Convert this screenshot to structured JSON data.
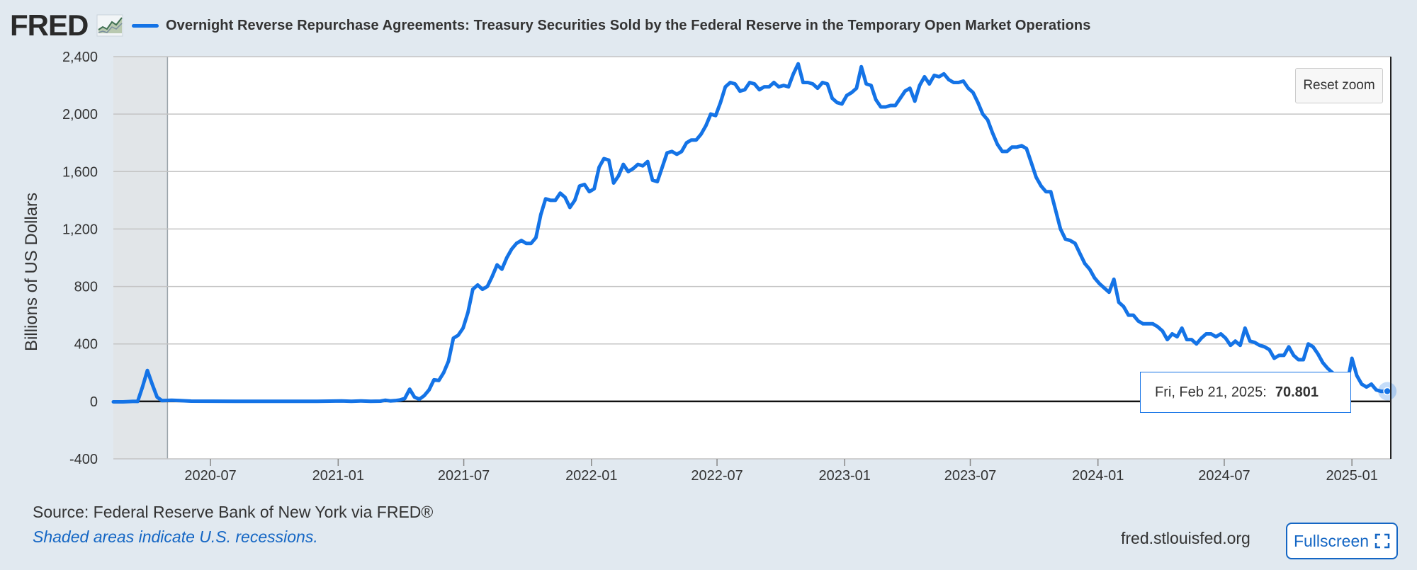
{
  "header": {
    "logo_text": "FRED",
    "logo_icon": "line-chart-icon",
    "legend_label": "Overnight Reverse Repurchase Agreements: Treasury Securities Sold by the Federal Reserve in the Temporary Open Market Operations"
  },
  "controls": {
    "reset_zoom_label": "Reset zoom",
    "fullscreen_label": "Fullscreen",
    "fullscreen_icon": "expand-icon"
  },
  "tooltip": {
    "date": "Fri, Feb 21, 2025:",
    "value": "70.801"
  },
  "footer": {
    "source": "Source: Federal Reserve Bank of New York via FRED®",
    "note": "Shaded areas indicate U.S. recessions.",
    "site": "fred.stlouisfed.org"
  },
  "colors": {
    "series": "#1473e6",
    "background": "#e1e9f0",
    "plot_background": "#ffffff",
    "recession_shade": "#e1e5e8",
    "link": "#1466c4"
  },
  "chart_data": {
    "type": "line",
    "title": "",
    "xlabel": "",
    "ylabel": "Billions of US Dollars",
    "ylim": [
      -400,
      2400
    ],
    "xlim": [
      "2020-02-12",
      "2025-02-26"
    ],
    "yticks": [
      -400,
      0,
      400,
      800,
      1200,
      1600,
      2000,
      2400
    ],
    "ytick_labels": [
      "-400",
      "0",
      "400",
      "800",
      "1,200",
      "1,600",
      "2,000",
      "2,400"
    ],
    "xticks": [
      "2020-07-01",
      "2021-01-01",
      "2021-07-01",
      "2022-01-01",
      "2022-07-01",
      "2023-01-01",
      "2023-07-01",
      "2024-01-01",
      "2024-07-01",
      "2025-01-01"
    ],
    "xtick_labels": [
      "2020-07",
      "2021-01",
      "2021-07",
      "2022-01",
      "2022-07",
      "2023-01",
      "2023-07",
      "2024-01",
      "2024-07",
      "2025-01"
    ],
    "grid": true,
    "legend_position": "top",
    "recessions": [
      [
        "2020-02-12",
        "2020-04-30"
      ]
    ],
    "series": [
      {
        "name": "Overnight Reverse Repurchase Agreements: Treasury Securities Sold by the Federal Reserve in the Temporary Open Market Operations",
        "color": "#1473e6",
        "points": [
          [
            "2020-02-12",
            -3
          ],
          [
            "2020-02-26",
            -3
          ],
          [
            "2020-03-11",
            0
          ],
          [
            "2020-03-18",
            0
          ],
          [
            "2020-03-25",
            100
          ],
          [
            "2020-04-01",
            215
          ],
          [
            "2020-04-08",
            120
          ],
          [
            "2020-04-15",
            30
          ],
          [
            "2020-04-22",
            5
          ],
          [
            "2020-05-06",
            8
          ],
          [
            "2020-06-03",
            2
          ],
          [
            "2020-08-05",
            1
          ],
          [
            "2020-10-07",
            1
          ],
          [
            "2020-12-02",
            1
          ],
          [
            "2021-01-06",
            3
          ],
          [
            "2021-01-20",
            1
          ],
          [
            "2021-02-03",
            3
          ],
          [
            "2021-02-17",
            1
          ],
          [
            "2021-03-03",
            2
          ],
          [
            "2021-03-10",
            8
          ],
          [
            "2021-03-17",
            3
          ],
          [
            "2021-03-24",
            5
          ],
          [
            "2021-03-31",
            10
          ],
          [
            "2021-04-07",
            20
          ],
          [
            "2021-04-14",
            85
          ],
          [
            "2021-04-21",
            30
          ],
          [
            "2021-04-28",
            15
          ],
          [
            "2021-05-05",
            40
          ],
          [
            "2021-05-12",
            80
          ],
          [
            "2021-05-19",
            150
          ],
          [
            "2021-05-26",
            145
          ],
          [
            "2021-06-02",
            200
          ],
          [
            "2021-06-09",
            280
          ],
          [
            "2021-06-16",
            440
          ],
          [
            "2021-06-23",
            460
          ],
          [
            "2021-06-30",
            510
          ],
          [
            "2021-07-07",
            620
          ],
          [
            "2021-07-14",
            780
          ],
          [
            "2021-07-21",
            810
          ],
          [
            "2021-07-28",
            780
          ],
          [
            "2021-08-04",
            800
          ],
          [
            "2021-08-11",
            870
          ],
          [
            "2021-08-18",
            950
          ],
          [
            "2021-08-25",
            920
          ],
          [
            "2021-09-01",
            1000
          ],
          [
            "2021-09-08",
            1060
          ],
          [
            "2021-09-15",
            1100
          ],
          [
            "2021-09-22",
            1120
          ],
          [
            "2021-09-29",
            1100
          ],
          [
            "2021-10-06",
            1100
          ],
          [
            "2021-10-13",
            1140
          ],
          [
            "2021-10-20",
            1300
          ],
          [
            "2021-10-27",
            1410
          ],
          [
            "2021-11-03",
            1400
          ],
          [
            "2021-11-10",
            1400
          ],
          [
            "2021-11-17",
            1450
          ],
          [
            "2021-11-24",
            1420
          ],
          [
            "2021-12-01",
            1350
          ],
          [
            "2021-12-08",
            1400
          ],
          [
            "2021-12-15",
            1500
          ],
          [
            "2021-12-22",
            1510
          ],
          [
            "2021-12-29",
            1460
          ],
          [
            "2022-01-05",
            1480
          ],
          [
            "2022-01-12",
            1630
          ],
          [
            "2022-01-19",
            1690
          ],
          [
            "2022-01-26",
            1680
          ],
          [
            "2022-02-02",
            1520
          ],
          [
            "2022-02-09",
            1570
          ],
          [
            "2022-02-16",
            1650
          ],
          [
            "2022-02-23",
            1600
          ],
          [
            "2022-03-02",
            1620
          ],
          [
            "2022-03-09",
            1650
          ],
          [
            "2022-03-16",
            1640
          ],
          [
            "2022-03-23",
            1670
          ],
          [
            "2022-03-30",
            1540
          ],
          [
            "2022-04-06",
            1530
          ],
          [
            "2022-04-13",
            1630
          ],
          [
            "2022-04-20",
            1730
          ],
          [
            "2022-04-27",
            1740
          ],
          [
            "2022-05-04",
            1720
          ],
          [
            "2022-05-11",
            1740
          ],
          [
            "2022-05-18",
            1800
          ],
          [
            "2022-05-25",
            1820
          ],
          [
            "2022-06-01",
            1820
          ],
          [
            "2022-06-08",
            1860
          ],
          [
            "2022-06-15",
            1920
          ],
          [
            "2022-06-22",
            2000
          ],
          [
            "2022-06-29",
            1990
          ],
          [
            "2022-07-06",
            2080
          ],
          [
            "2022-07-13",
            2190
          ],
          [
            "2022-07-20",
            2220
          ],
          [
            "2022-07-27",
            2210
          ],
          [
            "2022-08-03",
            2160
          ],
          [
            "2022-08-10",
            2170
          ],
          [
            "2022-08-17",
            2220
          ],
          [
            "2022-08-24",
            2210
          ],
          [
            "2022-08-31",
            2170
          ],
          [
            "2022-09-07",
            2190
          ],
          [
            "2022-09-14",
            2190
          ],
          [
            "2022-09-21",
            2220
          ],
          [
            "2022-09-28",
            2190
          ],
          [
            "2022-10-05",
            2200
          ],
          [
            "2022-10-12",
            2190
          ],
          [
            "2022-10-19",
            2280
          ],
          [
            "2022-10-26",
            2350
          ],
          [
            "2022-11-02",
            2220
          ],
          [
            "2022-11-09",
            2220
          ],
          [
            "2022-11-16",
            2210
          ],
          [
            "2022-11-23",
            2180
          ],
          [
            "2022-11-30",
            2220
          ],
          [
            "2022-12-07",
            2210
          ],
          [
            "2022-12-14",
            2110
          ],
          [
            "2022-12-21",
            2080
          ],
          [
            "2022-12-28",
            2070
          ],
          [
            "2023-01-04",
            2130
          ],
          [
            "2023-01-11",
            2150
          ],
          [
            "2023-01-18",
            2180
          ],
          [
            "2023-01-25",
            2330
          ],
          [
            "2023-02-01",
            2210
          ],
          [
            "2023-02-08",
            2200
          ],
          [
            "2023-02-15",
            2100
          ],
          [
            "2023-02-22",
            2050
          ],
          [
            "2023-03-01",
            2050
          ],
          [
            "2023-03-08",
            2060
          ],
          [
            "2023-03-15",
            2060
          ],
          [
            "2023-03-22",
            2110
          ],
          [
            "2023-03-29",
            2160
          ],
          [
            "2023-04-05",
            2180
          ],
          [
            "2023-04-12",
            2090
          ],
          [
            "2023-04-19",
            2200
          ],
          [
            "2023-04-26",
            2260
          ],
          [
            "2023-05-03",
            2210
          ],
          [
            "2023-05-10",
            2270
          ],
          [
            "2023-05-17",
            2260
          ],
          [
            "2023-05-24",
            2280
          ],
          [
            "2023-05-31",
            2240
          ],
          [
            "2023-06-07",
            2220
          ],
          [
            "2023-06-14",
            2220
          ],
          [
            "2023-06-21",
            2230
          ],
          [
            "2023-06-28",
            2180
          ],
          [
            "2023-07-05",
            2150
          ],
          [
            "2023-07-12",
            2080
          ],
          [
            "2023-07-19",
            2000
          ],
          [
            "2023-07-26",
            1960
          ],
          [
            "2023-08-02",
            1870
          ],
          [
            "2023-08-09",
            1790
          ],
          [
            "2023-08-16",
            1740
          ],
          [
            "2023-08-23",
            1740
          ],
          [
            "2023-08-30",
            1770
          ],
          [
            "2023-09-06",
            1770
          ],
          [
            "2023-09-13",
            1780
          ],
          [
            "2023-09-20",
            1760
          ],
          [
            "2023-09-27",
            1660
          ],
          [
            "2023-10-04",
            1560
          ],
          [
            "2023-10-11",
            1500
          ],
          [
            "2023-10-18",
            1460
          ],
          [
            "2023-10-25",
            1460
          ],
          [
            "2023-11-01",
            1330
          ],
          [
            "2023-11-08",
            1200
          ],
          [
            "2023-11-15",
            1130
          ],
          [
            "2023-11-22",
            1120
          ],
          [
            "2023-11-29",
            1100
          ],
          [
            "2023-12-06",
            1030
          ],
          [
            "2023-12-13",
            960
          ],
          [
            "2023-12-20",
            920
          ],
          [
            "2023-12-27",
            860
          ],
          [
            "2024-01-03",
            820
          ],
          [
            "2024-01-10",
            790
          ],
          [
            "2024-01-17",
            760
          ],
          [
            "2024-01-24",
            850
          ],
          [
            "2024-01-31",
            690
          ],
          [
            "2024-02-07",
            660
          ],
          [
            "2024-02-14",
            600
          ],
          [
            "2024-02-21",
            600
          ],
          [
            "2024-02-28",
            560
          ],
          [
            "2024-03-06",
            540
          ],
          [
            "2024-03-13",
            540
          ],
          [
            "2024-03-20",
            540
          ],
          [
            "2024-03-27",
            520
          ],
          [
            "2024-04-03",
            490
          ],
          [
            "2024-04-10",
            430
          ],
          [
            "2024-04-17",
            470
          ],
          [
            "2024-04-24",
            450
          ],
          [
            "2024-05-01",
            510
          ],
          [
            "2024-05-08",
            430
          ],
          [
            "2024-05-15",
            430
          ],
          [
            "2024-05-22",
            400
          ],
          [
            "2024-05-29",
            440
          ],
          [
            "2024-06-05",
            470
          ],
          [
            "2024-06-12",
            470
          ],
          [
            "2024-06-19",
            450
          ],
          [
            "2024-06-26",
            470
          ],
          [
            "2024-07-03",
            440
          ],
          [
            "2024-07-10",
            390
          ],
          [
            "2024-07-17",
            420
          ],
          [
            "2024-07-24",
            390
          ],
          [
            "2024-07-31",
            510
          ],
          [
            "2024-08-07",
            420
          ],
          [
            "2024-08-14",
            410
          ],
          [
            "2024-08-21",
            390
          ],
          [
            "2024-08-28",
            380
          ],
          [
            "2024-09-04",
            360
          ],
          [
            "2024-09-11",
            300
          ],
          [
            "2024-09-18",
            320
          ],
          [
            "2024-09-25",
            320
          ],
          [
            "2024-10-02",
            380
          ],
          [
            "2024-10-09",
            320
          ],
          [
            "2024-10-16",
            290
          ],
          [
            "2024-10-23",
            290
          ],
          [
            "2024-10-30",
            400
          ],
          [
            "2024-11-06",
            380
          ],
          [
            "2024-11-13",
            330
          ],
          [
            "2024-11-20",
            270
          ],
          [
            "2024-11-27",
            230
          ],
          [
            "2024-12-04",
            200
          ],
          [
            "2024-12-11",
            170
          ],
          [
            "2024-12-18",
            140
          ],
          [
            "2024-12-25",
            120
          ],
          [
            "2025-01-01",
            300
          ],
          [
            "2025-01-08",
            180
          ],
          [
            "2025-01-15",
            120
          ],
          [
            "2025-01-22",
            100
          ],
          [
            "2025-01-29",
            120
          ],
          [
            "2025-02-05",
            80
          ],
          [
            "2025-02-12",
            70
          ],
          [
            "2025-02-21",
            70.801
          ]
        ]
      }
    ]
  }
}
